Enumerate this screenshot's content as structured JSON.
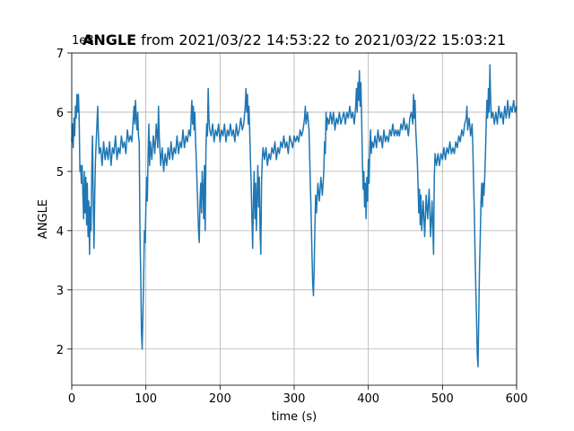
{
  "chart_data": {
    "type": "line",
    "title_bold": "ANGLE",
    "title": "from 2021/03/22 14:53:22 to 2021/03/22 15:03:21",
    "xlabel": "time (s)",
    "ylabel": "ANGLE",
    "y_offset_text": "1e8",
    "color": "#1f77b4",
    "grid": true,
    "xlim": [
      0,
      600
    ],
    "xticks": [
      0,
      100,
      200,
      300,
      400,
      500,
      600
    ],
    "ylim": [
      1.39,
      7
    ],
    "yticks": [
      2,
      3,
      4,
      5,
      6,
      7
    ],
    "x": [
      0,
      1,
      2,
      3,
      4,
      5,
      6,
      7,
      8,
      9,
      10,
      11,
      12,
      13,
      14,
      15,
      16,
      17,
      18,
      19,
      20,
      21,
      22,
      23,
      24,
      25,
      26,
      27,
      28,
      29,
      30,
      31,
      32,
      33,
      34,
      35,
      36,
      37,
      39,
      41,
      43,
      45,
      47,
      49,
      51,
      53,
      55,
      57,
      59,
      61,
      63,
      65,
      67,
      69,
      71,
      73,
      75,
      77,
      79,
      81,
      83,
      84,
      85,
      86,
      87,
      88,
      89,
      90,
      91,
      92,
      93,
      94,
      95,
      96,
      97,
      98,
      99,
      100,
      101,
      102,
      103,
      104,
      105,
      106,
      108,
      110,
      112,
      114,
      116,
      117,
      118,
      120,
      122,
      124,
      126,
      128,
      130,
      132,
      134,
      136,
      138,
      140,
      142,
      144,
      146,
      148,
      150,
      152,
      154,
      156,
      158,
      160,
      161,
      162,
      163,
      164,
      165,
      166,
      167,
      168,
      169,
      170,
      171,
      172,
      173,
      174,
      175,
      176,
      177,
      178,
      179,
      180,
      181,
      182,
      183,
      184,
      185,
      186,
      188,
      190,
      192,
      194,
      196,
      198,
      200,
      202,
      204,
      206,
      208,
      210,
      212,
      214,
      216,
      218,
      220,
      222,
      224,
      226,
      228,
      230,
      232,
      234,
      235,
      236,
      237,
      238,
      239,
      240,
      241,
      242,
      243,
      244,
      245,
      246,
      247,
      248,
      249,
      250,
      251,
      252,
      253,
      254,
      255,
      256,
      257,
      258,
      260,
      262,
      264,
      266,
      268,
      270,
      272,
      274,
      276,
      278,
      280,
      282,
      284,
      286,
      288,
      290,
      292,
      294,
      296,
      298,
      300,
      302,
      304,
      306,
      308,
      310,
      312,
      314,
      315,
      316,
      318,
      320,
      321,
      322,
      323,
      324,
      325,
      326,
      327,
      328,
      329,
      330,
      332,
      334,
      336,
      338,
      340,
      341,
      342,
      343,
      344,
      345,
      347,
      349,
      351,
      353,
      355,
      357,
      359,
      361,
      363,
      365,
      367,
      369,
      371,
      373,
      375,
      377,
      379,
      381,
      383,
      384,
      385,
      386,
      387,
      388,
      389,
      390,
      391,
      392,
      393,
      394,
      395,
      396,
      397,
      398,
      399,
      400,
      401,
      402,
      403,
      404,
      405,
      407,
      409,
      411,
      413,
      415,
      417,
      419,
      421,
      423,
      425,
      427,
      429,
      431,
      433,
      435,
      437,
      439,
      440,
      442,
      444,
      446,
      448,
      450,
      452,
      454,
      456,
      458,
      460,
      461,
      462,
      463,
      464,
      466,
      467,
      468,
      469,
      470,
      471,
      472,
      474,
      476,
      478,
      480,
      482,
      484,
      486,
      488,
      489,
      490,
      492,
      494,
      496,
      498,
      500,
      502,
      504,
      506,
      508,
      510,
      512,
      514,
      516,
      518,
      520,
      522,
      524,
      526,
      528,
      530,
      532,
      533,
      534,
      536,
      538,
      540,
      541,
      542,
      543,
      544,
      545,
      546,
      547,
      548,
      549,
      550,
      551,
      552,
      553,
      554,
      555,
      556,
      557,
      558,
      559,
      560,
      561,
      562,
      563,
      564,
      565,
      566,
      568,
      570,
      572,
      574,
      576,
      578,
      580,
      582,
      584,
      586,
      588,
      590,
      592,
      594,
      596,
      598,
      600
    ],
    "values": [
      5.5,
      5.8,
      5.4,
      5.9,
      5.6,
      6.1,
      5.9,
      6.3,
      6.0,
      6.3,
      5.9,
      5.0,
      5.1,
      4.8,
      5.1,
      4.6,
      4.2,
      5.0,
      4.3,
      4.9,
      4.1,
      4.8,
      3.9,
      4.5,
      3.6,
      4.4,
      4.0,
      5.0,
      5.6,
      4.5,
      3.7,
      4.6,
      5.2,
      5.5,
      5.8,
      6.1,
      5.6,
      5.3,
      5.4,
      5.1,
      5.5,
      5.2,
      5.4,
      5.2,
      5.5,
      5.1,
      5.4,
      5.3,
      5.6,
      5.2,
      5.4,
      5.3,
      5.6,
      5.4,
      5.5,
      5.3,
      5.7,
      5.5,
      5.6,
      5.5,
      5.9,
      6.1,
      5.8,
      6.2,
      5.9,
      5.7,
      6.0,
      5.6,
      5.5,
      4.0,
      3.3,
      2.3,
      2.0,
      2.6,
      3.2,
      4.0,
      3.8,
      4.4,
      4.9,
      4.5,
      5.3,
      5.8,
      5.1,
      5.5,
      5.2,
      5.6,
      5.3,
      5.8,
      5.4,
      6.1,
      5.6,
      5.1,
      5.4,
      5.0,
      5.3,
      5.1,
      5.4,
      5.2,
      5.5,
      5.2,
      5.4,
      5.3,
      5.6,
      5.3,
      5.5,
      5.4,
      5.7,
      5.4,
      5.6,
      5.5,
      5.7,
      5.6,
      5.9,
      6.2,
      5.8,
      6.1,
      5.7,
      6.0,
      5.5,
      5.2,
      4.8,
      4.4,
      4.0,
      3.8,
      4.5,
      4.8,
      4.3,
      5.0,
      4.7,
      4.2,
      5.1,
      4.0,
      5.4,
      5.8,
      5.6,
      6.4,
      5.9,
      5.7,
      5.6,
      5.8,
      5.5,
      5.7,
      5.6,
      5.8,
      5.5,
      5.7,
      5.6,
      5.8,
      5.5,
      5.7,
      5.6,
      5.8,
      5.6,
      5.7,
      5.5,
      5.8,
      5.6,
      5.7,
      5.9,
      5.7,
      5.8,
      6.1,
      6.4,
      6.0,
      6.3,
      5.8,
      6.1,
      5.7,
      5.2,
      4.8,
      4.2,
      3.7,
      4.5,
      5.0,
      4.2,
      4.8,
      4.0,
      4.6,
      5.1,
      4.4,
      4.9,
      4.0,
      3.6,
      4.8,
      5.2,
      5.4,
      5.2,
      5.4,
      5.1,
      5.3,
      5.2,
      5.4,
      5.3,
      5.5,
      5.2,
      5.4,
      5.3,
      5.5,
      5.4,
      5.6,
      5.4,
      5.5,
      5.3,
      5.6,
      5.5,
      5.4,
      5.6,
      5.5,
      5.6,
      5.5,
      5.7,
      5.6,
      5.7,
      5.9,
      6.1,
      5.8,
      6.0,
      5.7,
      5.2,
      4.7,
      4.2,
      3.6,
      3.1,
      2.9,
      3.4,
      4.1,
      4.6,
      4.3,
      4.8,
      4.5,
      4.9,
      4.6,
      5.0,
      5.5,
      5.3,
      6.0,
      5.7,
      5.9,
      5.8,
      6.0,
      5.8,
      6.0,
      5.7,
      5.9,
      5.8,
      6.0,
      5.8,
      5.9,
      6.0,
      5.8,
      6.0,
      5.9,
      6.1,
      5.9,
      6.0,
      5.8,
      6.1,
      6.4,
      6.0,
      6.5,
      6.2,
      6.7,
      6.1,
      6.5,
      5.9,
      5.2,
      4.7,
      5.0,
      4.4,
      4.8,
      4.2,
      4.9,
      4.5,
      5.2,
      4.8,
      5.4,
      5.7,
      5.3,
      5.5,
      5.4,
      5.6,
      5.4,
      5.7,
      5.5,
      5.6,
      5.4,
      5.7,
      5.5,
      5.6,
      5.5,
      5.7,
      5.6,
      5.8,
      5.6,
      5.7,
      5.6,
      5.7,
      5.6,
      5.8,
      5.7,
      5.9,
      5.7,
      5.8,
      5.6,
      5.9,
      6.0,
      5.8,
      6.3,
      5.9,
      6.2,
      5.7,
      5.2,
      4.8,
      4.3,
      4.7,
      4.1,
      4.6,
      4.0,
      4.5,
      3.9,
      4.6,
      4.2,
      4.7,
      3.9,
      4.5,
      3.6,
      4.9,
      5.3,
      5.1,
      5.3,
      5.1,
      5.3,
      5.2,
      5.4,
      5.2,
      5.4,
      5.3,
      5.5,
      5.3,
      5.4,
      5.3,
      5.5,
      5.4,
      5.6,
      5.5,
      5.7,
      5.6,
      5.8,
      5.9,
      6.1,
      5.7,
      5.9,
      5.6,
      5.8,
      5.4,
      4.8,
      4.3,
      3.6,
      3.0,
      2.5,
      1.9,
      1.7,
      2.6,
      3.4,
      3.9,
      4.5,
      4.8,
      4.4,
      4.8,
      4.6,
      4.9,
      5.3,
      5.8,
      6.2,
      5.9,
      6.4,
      6.0,
      6.8,
      6.2,
      5.9,
      6.0,
      5.8,
      6.0,
      5.8,
      6.1,
      5.9,
      6.0,
      5.8,
      6.1,
      5.9,
      6.2,
      5.9,
      6.1,
      6.0,
      6.2,
      6.0,
      6.1
    ]
  }
}
